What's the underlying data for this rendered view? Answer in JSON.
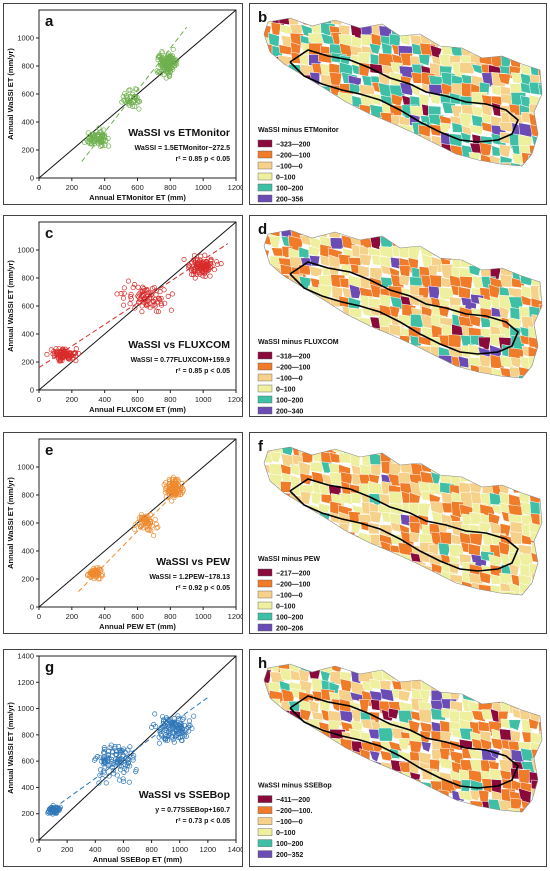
{
  "colors": {
    "green": "#6fb04e",
    "red": "#d92b2b",
    "orange": "#ee8a2e",
    "blue": "#2f77b8",
    "map_classes": [
      "#8b0a3c",
      "#f07c2a",
      "#f6d18a",
      "#eef0a0",
      "#3fc0a6",
      "#6a4cb4"
    ]
  },
  "chart_data": [
    {
      "type": "scatter",
      "letter": "a",
      "color": "#6fb04e",
      "ylabel": "Annual WaSSI ET (mm/yr)",
      "xlabel": "Annual ETMonitor ET (mm)",
      "xlim": [
        0,
        1200
      ],
      "ylim": [
        0,
        1200
      ],
      "xticks": [
        "0",
        "200",
        "400",
        "600",
        "800",
        "1000",
        "1200"
      ],
      "yticks": [
        "0",
        "200",
        "400",
        "600",
        "800",
        "1000"
      ],
      "title": "WaSSI vs ETMonitor",
      "equation": "WaSSI = 1.5ETMonitor−272.5",
      "r2": "r² = 0.85 p < 0.05",
      "fit": {
        "slope": 1.5,
        "intercept": -272.5,
        "x_range": [
          260,
          900
        ]
      },
      "point_groups": [
        {
          "x_center": 360,
          "x_spread": 90,
          "y_center": 280,
          "y_spread": 90,
          "n": 70
        },
        {
          "x_center": 560,
          "x_spread": 90,
          "y_center": 560,
          "y_spread": 110,
          "n": 40
        },
        {
          "x_center": 780,
          "x_spread": 80,
          "y_center": 820,
          "y_spread": 120,
          "n": 120
        }
      ]
    },
    {
      "type": "scatter",
      "letter": "c",
      "color": "#d92b2b",
      "ylabel": "Annual WaSSI ET (mm/yr)",
      "xlabel": "Annual FLUXCOM ET (mm)",
      "xlim": [
        0,
        1200
      ],
      "ylim": [
        0,
        1200
      ],
      "xticks": [
        "0",
        "200",
        "400",
        "600",
        "800",
        "1000",
        "1200"
      ],
      "yticks": [
        "0",
        "200",
        "400",
        "600",
        "800",
        "1000"
      ],
      "title": "WaSSI vs FLUXCOM",
      "equation": "WaSSI = 0.77FLUXCOM+159.9",
      "r2": "r² = 0.85 p < 0.05",
      "fit": {
        "slope": 0.77,
        "intercept": 159.9,
        "x_range": [
          0,
          1150
        ]
      },
      "point_groups": [
        {
          "x_center": 150,
          "x_spread": 130,
          "y_center": 250,
          "y_spread": 70,
          "n": 90
        },
        {
          "x_center": 650,
          "x_spread": 200,
          "y_center": 660,
          "y_spread": 140,
          "n": 80
        },
        {
          "x_center": 1000,
          "x_spread": 130,
          "y_center": 880,
          "y_spread": 90,
          "n": 110
        }
      ]
    },
    {
      "type": "scatter",
      "letter": "e",
      "color": "#ee8a2e",
      "ylabel": "Annual WaSSI ET (mm/yr)",
      "xlabel": "Annual PEW ET (mm)",
      "xlim": [
        0,
        1200
      ],
      "ylim": [
        0,
        1200
      ],
      "xticks": [
        "0",
        "200",
        "400",
        "600",
        "800",
        "1000",
        "1200"
      ],
      "yticks": [
        "0",
        "200",
        "400",
        "600",
        "800",
        "1000"
      ],
      "title": "WaSSI vs PEW",
      "equation": "WaSSI = 1.2PEW−178.13",
      "r2": "r² = 0.92 p < 0.05",
      "fit": {
        "slope": 1.2,
        "intercept": -178.13,
        "x_range": [
          240,
          920
        ]
      },
      "point_groups": [
        {
          "x_center": 340,
          "x_spread": 70,
          "y_center": 240,
          "y_spread": 60,
          "n": 60
        },
        {
          "x_center": 650,
          "x_spread": 90,
          "y_center": 600,
          "y_spread": 110,
          "n": 50
        },
        {
          "x_center": 820,
          "x_spread": 70,
          "y_center": 850,
          "y_spread": 110,
          "n": 110
        }
      ]
    },
    {
      "type": "scatter",
      "letter": "g",
      "color": "#2f77b8",
      "ylabel": "Annual WaSSI ET (mm/yr)",
      "xlabel": "Annual SSEBop ET (mm)",
      "xlim": [
        0,
        1400
      ],
      "ylim": [
        0,
        1400
      ],
      "xticks": [
        "0",
        "200",
        "400",
        "600",
        "800",
        "1000",
        "1200",
        "1400"
      ],
      "yticks": [
        "0",
        "200",
        "400",
        "600",
        "800",
        "1000",
        "1200",
        "1400"
      ],
      "title": "WaSSI vs SSEBop",
      "equation": "y = 0.77SSEBop+160.7",
      "r2": "r² = 0.73 p < 0.05",
      "fit": {
        "slope": 0.77,
        "intercept": 160.7,
        "x_range": [
          60,
          1200
        ]
      },
      "point_groups": [
        {
          "x_center": 110,
          "x_spread": 70,
          "y_center": 230,
          "y_spread": 50,
          "n": 50
        },
        {
          "x_center": 550,
          "x_spread": 200,
          "y_center": 600,
          "y_spread": 200,
          "n": 110
        },
        {
          "x_center": 950,
          "x_spread": 180,
          "y_center": 850,
          "y_spread": 150,
          "n": 120
        }
      ]
    }
  ],
  "maps": [
    {
      "letter": "b",
      "legend_title": "WaSSI minus ETMonitor",
      "legend": [
        "−323—200",
        "−200—100",
        "−100—0",
        "0–100",
        "100–200",
        "200–356"
      ],
      "class_weights": [
        0.05,
        0.22,
        0.18,
        0.22,
        0.25,
        0.08
      ]
    },
    {
      "letter": "d",
      "legend_title": "WaSSI minus FLUXCOM",
      "legend": [
        "−318—200",
        "−200—100",
        "−100—0",
        "0–100",
        "100–200",
        "200–340"
      ],
      "class_weights": [
        0.03,
        0.3,
        0.2,
        0.3,
        0.12,
        0.05
      ]
    },
    {
      "letter": "f",
      "legend_title": "WaSSI minus PEW",
      "legend": [
        "−217—200",
        "−200—100",
        "−100—0",
        "0–100",
        "100–200",
        "200–206"
      ],
      "class_weights": [
        0.01,
        0.28,
        0.25,
        0.42,
        0.03,
        0.01
      ]
    },
    {
      "letter": "h",
      "legend_title": "WaSSI minus SSEBop",
      "legend": [
        "−411—200",
        "−200—100.",
        "−100—0",
        "0–100",
        "100–200",
        "200–352"
      ],
      "class_weights": [
        0.1,
        0.3,
        0.22,
        0.25,
        0.08,
        0.05
      ]
    }
  ]
}
